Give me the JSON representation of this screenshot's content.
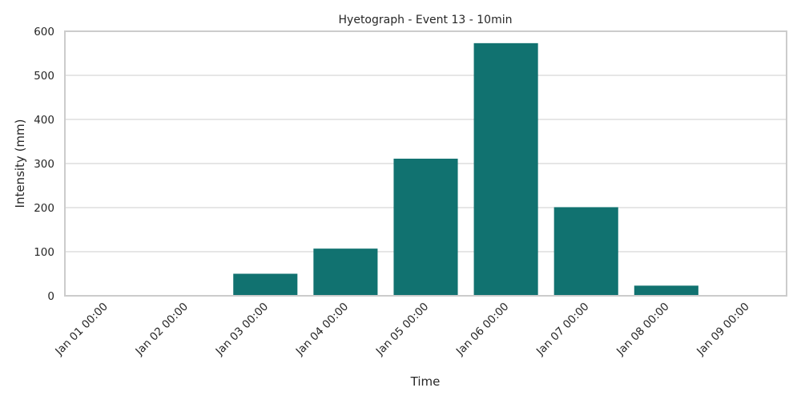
{
  "chart_data": {
    "type": "bar",
    "title": "Hyetograph - Event 13 - 10min",
    "xlabel": "Time",
    "ylabel": "Intensity (mm)",
    "categories": [
      "Jan 01 00:00",
      "Jan 02 00:00",
      "Jan 03 00:00",
      "Jan 04 00:00",
      "Jan 05 00:00",
      "Jan 06 00:00",
      "Jan 07 00:00",
      "Jan 08 00:00",
      "Jan 09 00:00"
    ],
    "values": [
      0,
      0,
      50,
      107,
      311,
      573,
      201,
      23,
      0
    ],
    "ylim": [
      0,
      600
    ],
    "yticks": [
      0,
      100,
      200,
      300,
      400,
      500,
      600
    ],
    "grid": "horizontal",
    "colors": {
      "bar": "#117270",
      "grid": "#cccccc",
      "frame": "#cccccc"
    }
  }
}
